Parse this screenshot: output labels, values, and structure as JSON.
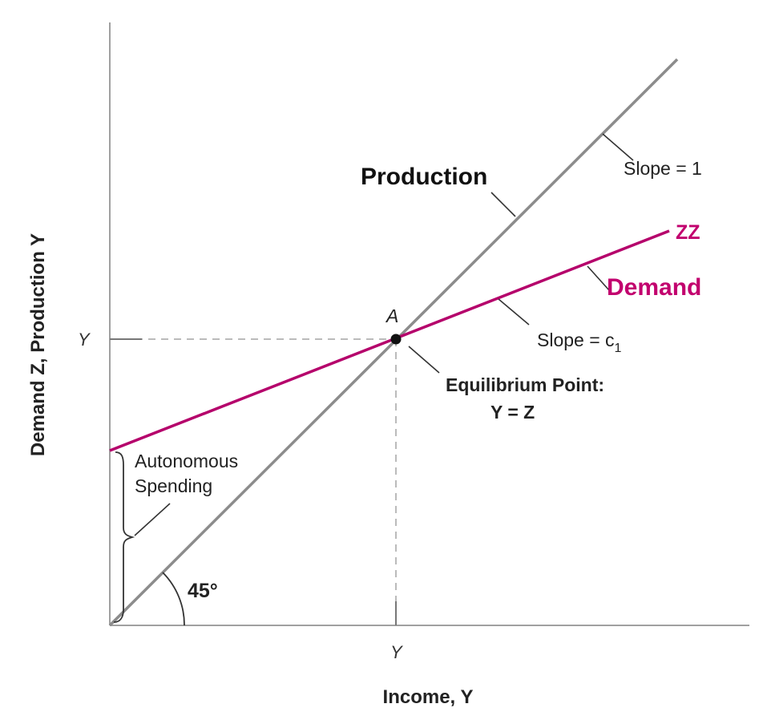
{
  "axes": {
    "y_axis_label": "Demand Z, Production Y",
    "x_axis_label": "Income, Y",
    "y_tick_label": "Y",
    "x_tick_label": "Y"
  },
  "lines": {
    "production": {
      "label": "Production",
      "slope_label": "Slope = 1",
      "color": "#8c8c8c"
    },
    "demand": {
      "curve_label": "ZZ",
      "label": "Demand",
      "slope_label_prefix": "Slope = c",
      "slope_label_subscript": "1",
      "color": "#b5006b"
    }
  },
  "equilibrium": {
    "point_label": "A",
    "title": "Equilibrium Point:",
    "condition": "Y = Z"
  },
  "annotations": {
    "autonomous_line1": "Autonomous",
    "autonomous_line2": "Spending",
    "angle_label": "45°"
  }
}
